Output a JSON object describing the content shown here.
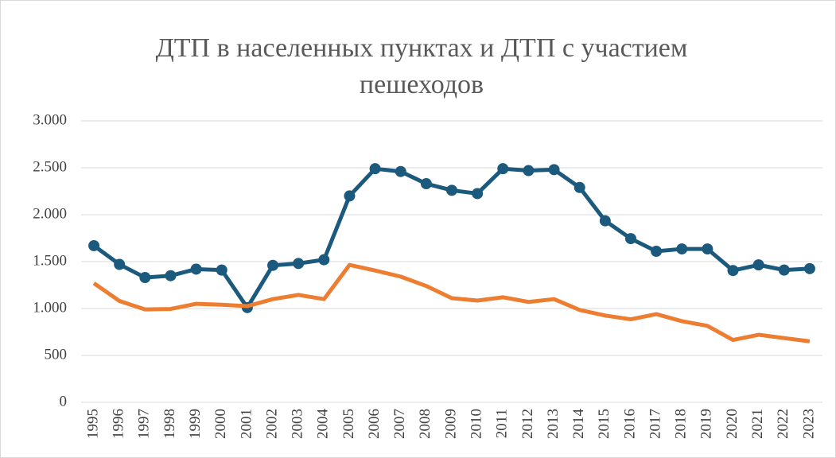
{
  "chart_data": {
    "type": "line",
    "title": "ДТП в населенных пунктах и ДТП с участием пешеходов",
    "categories": [
      "1995",
      "1996",
      "1997",
      "1998",
      "1999",
      "2000",
      "2001",
      "2002",
      "2003",
      "2004",
      "2005",
      "2006",
      "2007",
      "2008",
      "2009",
      "2010",
      "2011",
      "2012",
      "2013",
      "2014",
      "2015",
      "2016",
      "2017",
      "2018",
      "2019",
      "2020",
      "2021",
      "2022",
      "2023"
    ],
    "series": [
      {
        "color": "#1b5a7d",
        "marker": true,
        "values": [
          1670,
          1470,
          1330,
          1350,
          1420,
          1410,
          1010,
          1460,
          1480,
          1520,
          2200,
          2490,
          2460,
          2330,
          2260,
          2225,
          2490,
          2470,
          2480,
          2290,
          1935,
          1745,
          1610,
          1635,
          1635,
          1405,
          1465,
          1410,
          1425
        ]
      },
      {
        "color": "#ed7d31",
        "marker": false,
        "values": [
          1270,
          1080,
          990,
          995,
          1050,
          1040,
          1025,
          1100,
          1145,
          1100,
          1465,
          1405,
          1340,
          1240,
          1110,
          1085,
          1120,
          1070,
          1100,
          985,
          925,
          885,
          940,
          865,
          815,
          665,
          720,
          685,
          650
        ]
      }
    ],
    "ylim": [
      0,
      3000
    ],
    "yticks": [
      0,
      500,
      {
        "value": 1000,
        "label": "1.000"
      },
      {
        "value": 1500,
        "label": "1.500"
      },
      {
        "value": 2000,
        "label": "2.000"
      },
      {
        "value": 2500,
        "label": "2.500"
      },
      {
        "value": 3000,
        "label": "3.000"
      }
    ],
    "grid": true
  }
}
